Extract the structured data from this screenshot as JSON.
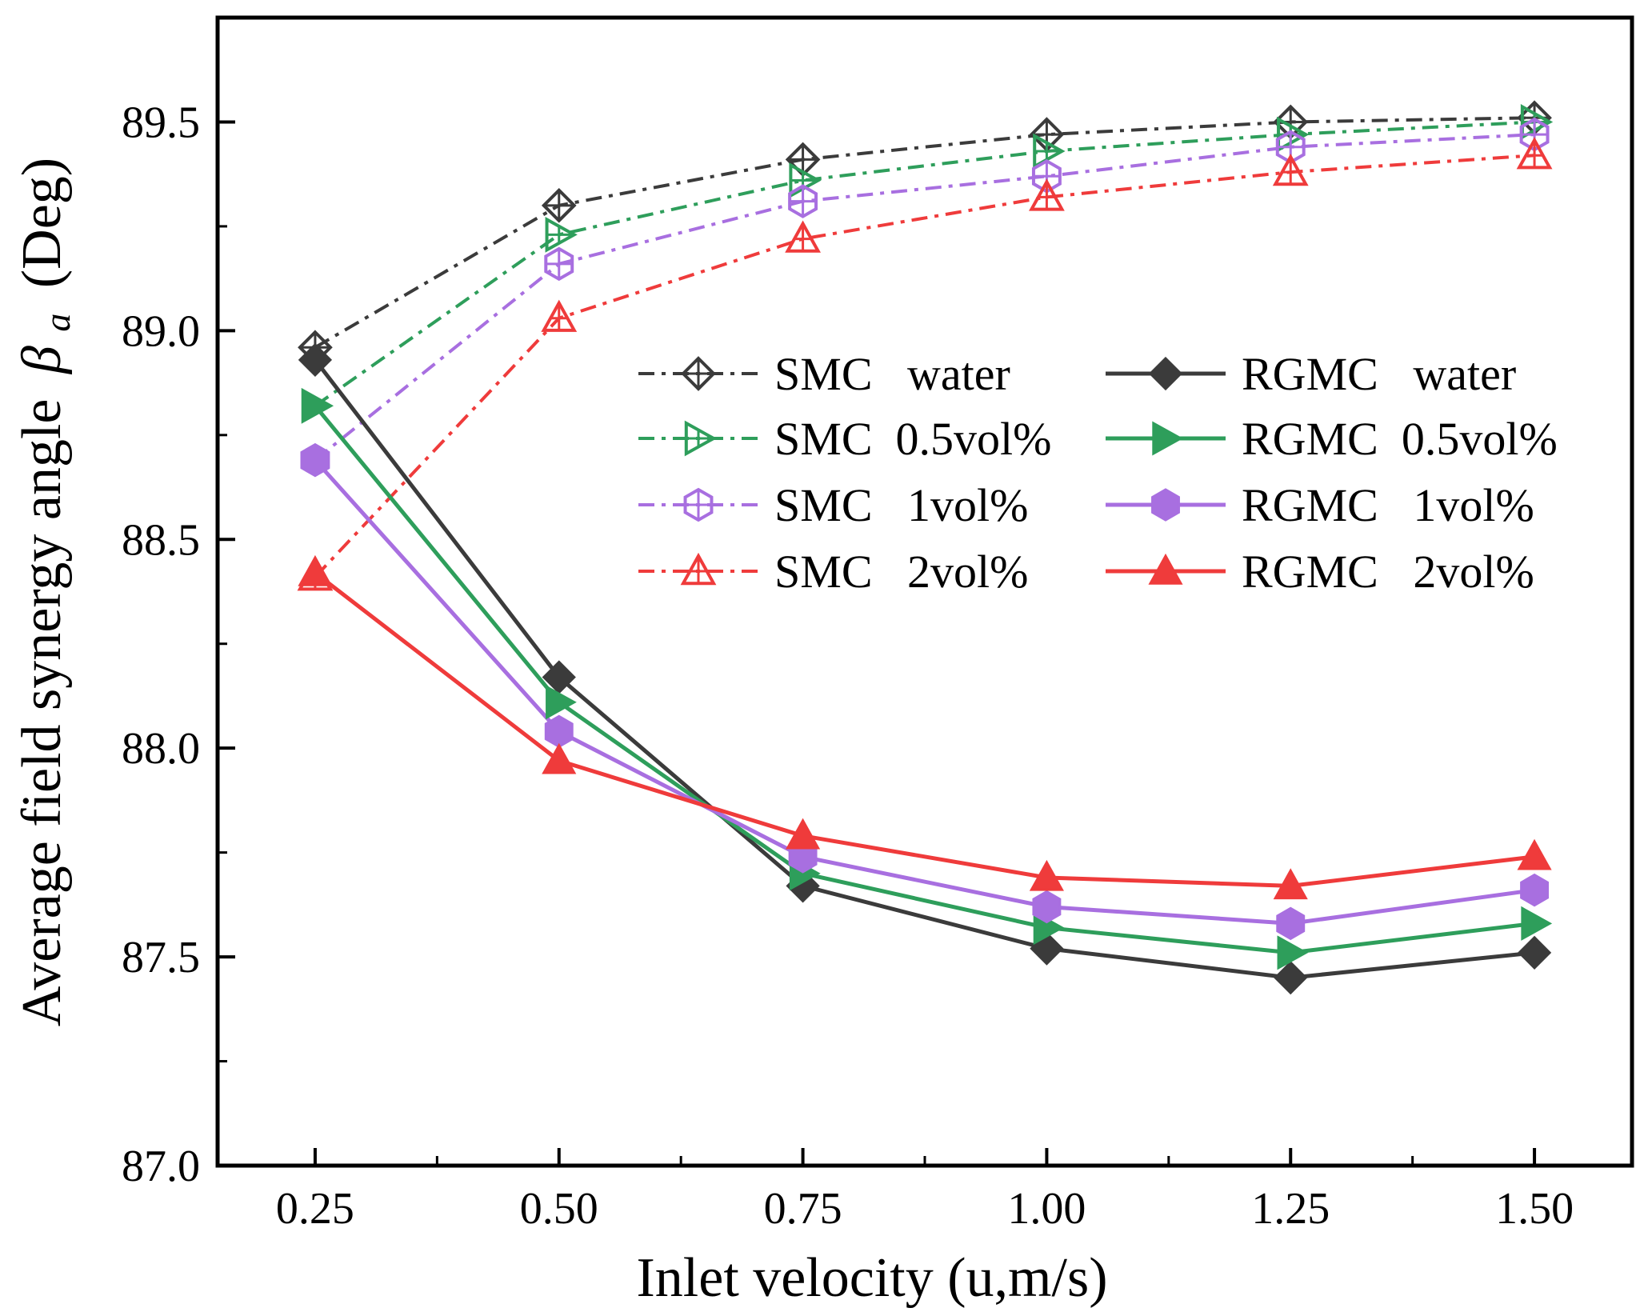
{
  "chart_data": {
    "type": "line",
    "title": "",
    "xlabel": "Inlet velocity (u,m/s)",
    "ylabel": "Average field synergy angle",
    "ylabel_symbol": "β",
    "ylabel_subscript": "a",
    "ylabel_unit": "(Deg)",
    "xlim": [
      0.15,
      1.6
    ],
    "ylim": [
      87.0,
      89.75
    ],
    "x": [
      0.25,
      0.5,
      0.75,
      1.0,
      1.25,
      1.5
    ],
    "xticks": [
      "0.25",
      "0.50",
      "0.75",
      "1.00",
      "1.25",
      "1.50"
    ],
    "yticks": [
      "87.0",
      "87.5",
      "88.0",
      "88.5",
      "89.0",
      "89.5"
    ],
    "legend_position": "center-right",
    "series": [
      {
        "id": "smc-water",
        "label": "SMC   water",
        "color": "#3b3b3b",
        "dash": "dashdot",
        "marker": "diamond-open",
        "values": [
          88.96,
          89.3,
          89.41,
          89.47,
          89.5,
          89.51
        ]
      },
      {
        "id": "smc-05",
        "label": "SMC  0.5vol%",
        "color": "#2e9e5b",
        "dash": "dashdot",
        "marker": "triangle-right-open",
        "values": [
          88.82,
          89.23,
          89.36,
          89.43,
          89.47,
          89.5
        ]
      },
      {
        "id": "smc-1",
        "label": "SMC   1vol%",
        "color": "#a86fe0",
        "dash": "dashdot",
        "marker": "hexagon-open",
        "values": [
          88.69,
          89.16,
          89.31,
          89.37,
          89.44,
          89.47
        ]
      },
      {
        "id": "smc-2",
        "label": "SMC   2vol%",
        "color": "#ef3b3b",
        "dash": "dashdot",
        "marker": "triangle-up-open",
        "values": [
          88.41,
          89.03,
          89.22,
          89.32,
          89.38,
          89.42
        ]
      },
      {
        "id": "rgmc-water",
        "label": "RGMC   water",
        "color": "#3b3b3b",
        "dash": "solid",
        "marker": "diamond-filled",
        "values": [
          88.93,
          88.17,
          87.67,
          87.52,
          87.45,
          87.51
        ]
      },
      {
        "id": "rgmc-05",
        "label": "RGMC  0.5vol%",
        "color": "#2e9e5b",
        "dash": "solid",
        "marker": "triangle-right-filled",
        "values": [
          88.82,
          88.11,
          87.7,
          87.57,
          87.51,
          87.58
        ]
      },
      {
        "id": "rgmc-1",
        "label": "RGMC   1vol%",
        "color": "#a86fe0",
        "dash": "solid",
        "marker": "hexagon-filled",
        "values": [
          88.69,
          88.04,
          87.74,
          87.62,
          87.58,
          87.66
        ]
      },
      {
        "id": "rgmc-2",
        "label": "RGMC   2vol%",
        "color": "#ef3b3b",
        "dash": "solid",
        "marker": "triangle-up-filled",
        "values": [
          88.42,
          87.97,
          87.79,
          87.69,
          87.67,
          87.74
        ]
      }
    ]
  }
}
